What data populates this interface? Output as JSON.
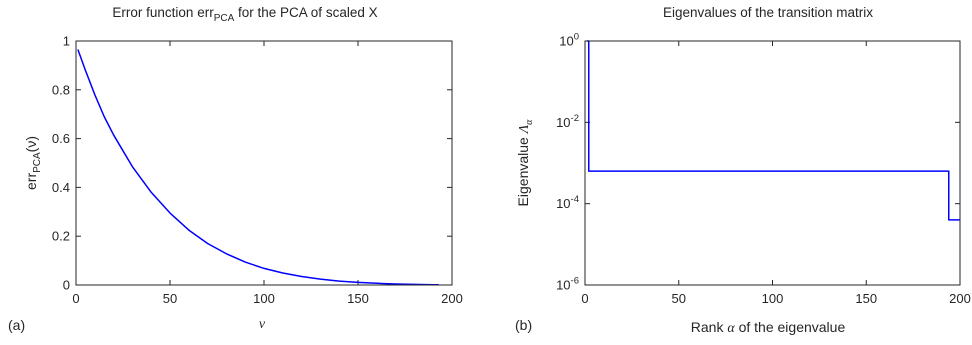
{
  "chart_data": [
    {
      "type": "line",
      "panel_label": "(a)",
      "title": {
        "main": "Error function err",
        "sub": "PCA",
        "rest": " for the PCA of scaled X"
      },
      "xlabel": "ν",
      "ylabel": {
        "prefix": "err",
        "sub": "PCA",
        "suffix": "(ν)"
      },
      "xlim": [
        0,
        200
      ],
      "ylim": [
        0,
        1
      ],
      "xticks": [
        0,
        50,
        100,
        150,
        200
      ],
      "yticks": [
        0,
        0.2,
        0.4,
        0.6,
        0.8,
        1
      ],
      "yscale": "linear",
      "grid": false,
      "color": "#0000ff",
      "series": [
        {
          "x": [
            1,
            5,
            10,
            15,
            20,
            30,
            40,
            50,
            60,
            70,
            80,
            90,
            100,
            110,
            120,
            130,
            140,
            150,
            160,
            170,
            180,
            190,
            193
          ],
          "y": [
            0.965,
            0.88,
            0.78,
            0.69,
            0.615,
            0.485,
            0.38,
            0.295,
            0.225,
            0.17,
            0.128,
            0.094,
            0.068,
            0.049,
            0.035,
            0.024,
            0.016,
            0.011,
            0.007,
            0.004,
            0.0025,
            0.0012,
            0.001
          ]
        }
      ]
    },
    {
      "type": "line",
      "panel_label": "(b)",
      "title": "Eigenvalues of the transition matrix",
      "xlabel": {
        "prefix": "Rank ",
        "greek": "α",
        "suffix": " of the eigenvalue"
      },
      "ylabel": {
        "prefix": "Eigenvalue ",
        "greek": "Λ",
        "sub": "α"
      },
      "xlim": [
        0,
        200
      ],
      "ylim": [
        1e-06,
        1
      ],
      "xticks": [
        0,
        50,
        100,
        150,
        200
      ],
      "yticks": [
        1e-06,
        0.0001,
        0.01,
        1
      ],
      "ytick_labels": [
        {
          "base": "10",
          "exp": "-6"
        },
        {
          "base": "10",
          "exp": "-4"
        },
        {
          "base": "10",
          "exp": "-2"
        },
        {
          "base": "10",
          "exp": "0"
        }
      ],
      "yscale": "log",
      "grid": false,
      "color": "#0000ff",
      "series": [
        {
          "x": [
            1,
            1,
            2,
            2,
            194,
            194,
            200
          ],
          "y": [
            1,
            1,
            1,
            0.00063,
            0.00063,
            4e-05,
            4e-05
          ]
        }
      ]
    }
  ]
}
